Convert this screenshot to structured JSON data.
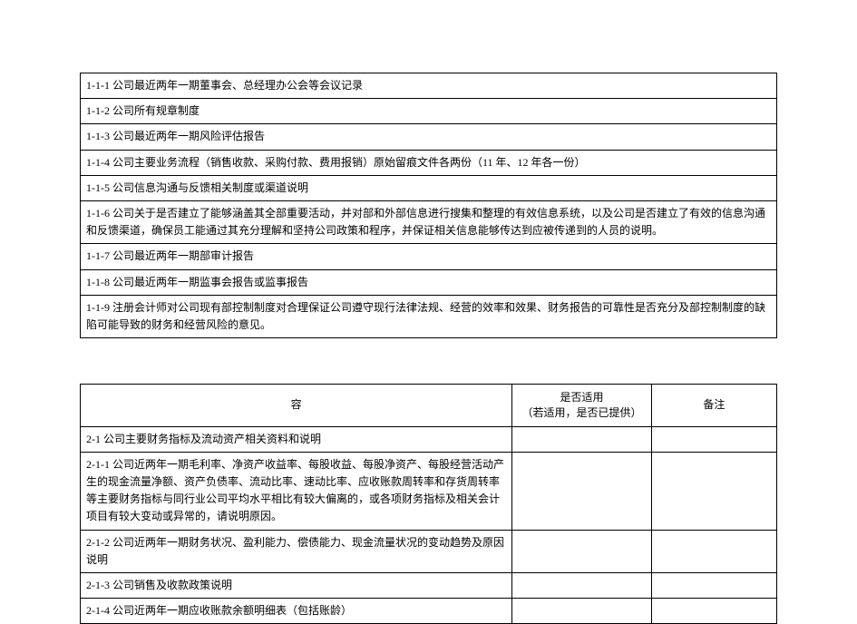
{
  "table1": {
    "rows": [
      "1-1-1 公司最近两年一期董事会、总经理办公会等会议记录",
      "1-1-2 公司所有规章制度",
      "1-1-3 公司最近两年一期风险评估报告",
      "1-1-4 公司主要业务流程（销售收款、采购付款、费用报销）原始留痕文件各两份（11 年、12 年各一份）",
      "1-1-5  公司信息沟通与反馈相关制度或渠道说明",
      "1-1-6 公司关于是否建立了能够涵盖其全部重要活动，并对部和外部信息进行搜集和整理的有效信息系统，以及公司是否建立了有效的信息沟通和反馈渠道，确保员工能通过其充分理解和坚持公司政策和程序，并保证相关信息能够传达到应被传递到的人员的说明。",
      "1-1-7  公司最近两年一期部审计报告",
      "1-1-8  公司最近两年一期监事会报告或监事报告",
      "1-1-9 注册会计师对公司现有部控制制度对合理保证公司遵守现行法律法规、经营的效率和效果、财务报告的可靠性是否充分及部控制制度的缺陷可能导致的财务和经营风险的意见。"
    ]
  },
  "table2": {
    "headers": {
      "desc": "容",
      "applicable": "是否适用\n（若适用，是否已提供）",
      "notes": "备注"
    },
    "rows": [
      {
        "desc": "2-1  公司主要财务指标及流动资产相关资料和说明"
      },
      {
        "desc": "2-1-1  公司近两年一期毛利率、净资产收益率、每股收益、每股净资产、每股经营活动产生的现金流量净额、资产负债率、流动比率、速动比率、应收账款周转率和存货周转率等主要财务指标与同行业公司平均水平相比有较大偏离的，或各项财务指标及相关会计项目有较大变动或异常的，请说明原因。"
      },
      {
        "desc": "2-1-2  公司近两年一期财务状况、盈利能力、偿债能力、现金流量状况的变动趋势及原因说明"
      },
      {
        "desc": "2-1-3  公司销售及收款政策说明"
      },
      {
        "desc": "2-1-4 公司近两年一期应收账款余额明细表（包括账龄）"
      }
    ]
  }
}
